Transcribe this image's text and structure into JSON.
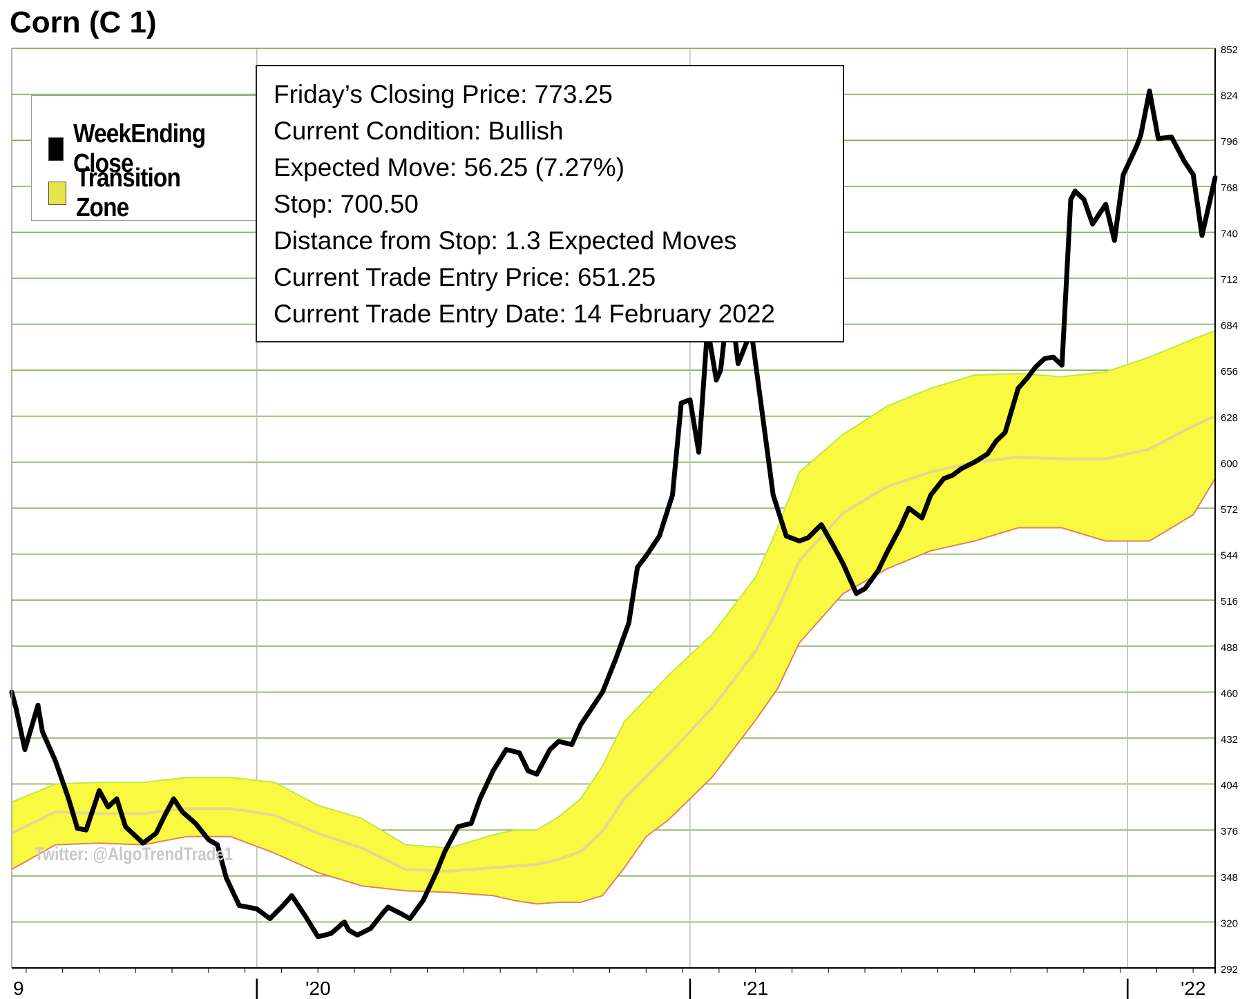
{
  "chart_data": {
    "type": "line",
    "title": "Corn (C 1)",
    "y_axis": {
      "ylim": [
        292,
        852
      ],
      "position": "right",
      "tick_labels": [
        "852",
        "824",
        "796",
        "768",
        "740",
        "712",
        "684",
        "656",
        "628",
        "600",
        "572",
        "544",
        "516",
        "488",
        "460",
        "432",
        "404",
        "376",
        "348",
        "320",
        "292"
      ]
    },
    "x_axis": {
      "xlim": [
        2019.3,
        2022.05
      ],
      "tick_labels": [
        {
          "x": 2019.3,
          "label": "9"
        },
        {
          "x": 2019.86,
          "label": "|"
        },
        {
          "x": 2020.0,
          "label": "'20"
        },
        {
          "x": 2020.85,
          "label": "|"
        },
        {
          "x": 2021.0,
          "label": "'21"
        },
        {
          "x": 2021.85,
          "label": "|"
        },
        {
          "x": 2022.0,
          "label": "'22"
        }
      ],
      "gridlines": [
        2019.86,
        2020.85,
        2021.85
      ]
    },
    "grid": true,
    "legend": {
      "placement": "top-left",
      "entries": [
        {
          "label": "WeekEnding Close",
          "color": "#000000"
        },
        {
          "label": "Transition Zone",
          "color": "#e6e64a"
        }
      ]
    },
    "series": [
      {
        "name": "WeekEnding Close",
        "color": "#000000",
        "x": [
          2019.3,
          2019.31,
          2019.33,
          2019.36,
          2019.37,
          2019.4,
          2019.43,
          2019.44,
          2019.45,
          2019.47,
          2019.5,
          2019.52,
          2019.54,
          2019.56,
          2019.6,
          2019.63,
          2019.65,
          2019.67,
          2019.69,
          2019.72,
          2019.75,
          2019.77,
          2019.79,
          2019.82,
          2019.86,
          2019.89,
          2019.92,
          2019.94,
          2019.97,
          2020.0,
          2020.03,
          2020.06,
          2020.07,
          2020.09,
          2020.12,
          2020.15,
          2020.16,
          2020.19,
          2020.21,
          2020.24,
          2020.27,
          2020.29,
          2020.32,
          2020.35,
          2020.37,
          2020.4,
          2020.43,
          2020.46,
          2020.48,
          2020.5,
          2020.53,
          2020.55,
          2020.58,
          2020.6,
          2020.63,
          2020.65,
          2020.68,
          2020.71,
          2020.73,
          2020.75,
          2020.78,
          2020.81,
          2020.83,
          2020.85,
          2020.87,
          2020.89,
          2020.91,
          2020.92,
          2020.94,
          2020.96,
          2020.99,
          2021.01,
          2021.04,
          2021.07,
          2021.1,
          2021.12,
          2021.15,
          2021.18,
          2021.2,
          2021.23,
          2021.25,
          2021.28,
          2021.3,
          2021.33,
          2021.35,
          2021.38,
          2021.4,
          2021.43,
          2021.45,
          2021.47,
          2021.5,
          2021.53,
          2021.55,
          2021.57,
          2021.6,
          2021.62,
          2021.64,
          2021.66,
          2021.68,
          2021.7,
          2021.72,
          2021.73,
          2021.75,
          2021.77,
          2021.8,
          2021.82,
          2021.84,
          2021.87,
          2021.88,
          2021.9,
          2021.92,
          2021.95,
          2021.98,
          2022.0,
          2022.02,
          2022.05
        ],
        "y": [
          460,
          450,
          425,
          452,
          436,
          418,
          395,
          386,
          377,
          376,
          400,
          390,
          395,
          378,
          368,
          374,
          385,
          395,
          387,
          380,
          370,
          367,
          347,
          330,
          328,
          322,
          330,
          336,
          324,
          311,
          313,
          320,
          315,
          312,
          316,
          326,
          329,
          325,
          322,
          333,
          350,
          363,
          378,
          380,
          395,
          412,
          425,
          423,
          412,
          410,
          425,
          430,
          428,
          440,
          452,
          460,
          480,
          502,
          536,
          543,
          555,
          580,
          636,
          638,
          606,
          682,
          650,
          656,
          704,
          660,
          680,
          640,
          580,
          555,
          552,
          554,
          562,
          548,
          538,
          520,
          523,
          534,
          545,
          560,
          572,
          566,
          580,
          590,
          592,
          596,
          600,
          605,
          613,
          618,
          645,
          651,
          658,
          663,
          664,
          659,
          760,
          765,
          760,
          745,
          757,
          735,
          775,
          792,
          799,
          826,
          797,
          798,
          783,
          775,
          738,
          773.25
        ]
      },
      {
        "name": "Transition Zone upper",
        "color": "#c0e840",
        "x": [
          2019.3,
          2019.4,
          2019.5,
          2019.6,
          2019.7,
          2019.8,
          2019.9,
          2020.0,
          2020.1,
          2020.2,
          2020.3,
          2020.4,
          2020.45,
          2020.5,
          2020.55,
          2020.6,
          2020.65,
          2020.7,
          2020.8,
          2020.9,
          2021.0,
          2021.05,
          2021.1,
          2021.2,
          2021.3,
          2021.4,
          2021.5,
          2021.6,
          2021.7,
          2021.8,
          2021.9,
          2022.0,
          2022.05
        ],
        "y": [
          393,
          404,
          405,
          405,
          408,
          408,
          405,
          391,
          383,
          367,
          365,
          373,
          376,
          376,
          384,
          395,
          415,
          442,
          470,
          495,
          530,
          560,
          594,
          617,
          634,
          645,
          653,
          654,
          652,
          655,
          664,
          675,
          680
        ]
      },
      {
        "name": "Transition Zone lower",
        "color": "#e08060",
        "x": [
          2019.3,
          2019.4,
          2019.5,
          2019.6,
          2019.7,
          2019.8,
          2019.9,
          2020.0,
          2020.1,
          2020.2,
          2020.3,
          2020.4,
          2020.45,
          2020.5,
          2020.55,
          2020.6,
          2020.65,
          2020.7,
          2020.75,
          2020.8,
          2020.9,
          2021.0,
          2021.05,
          2021.1,
          2021.2,
          2021.3,
          2021.4,
          2021.5,
          2021.6,
          2021.7,
          2021.8,
          2021.9,
          2022.0,
          2022.05
        ],
        "y": [
          352,
          367,
          368,
          367,
          372,
          372,
          362,
          350,
          342,
          339,
          338,
          336,
          333,
          331,
          332,
          332,
          336,
          353,
          372,
          382,
          408,
          443,
          462,
          490,
          520,
          535,
          546,
          552,
          560,
          560,
          552,
          552,
          568,
          590
        ]
      },
      {
        "name": "Transition Zone mid",
        "color": "#e3d98c",
        "x": [
          2019.3,
          2019.4,
          2019.5,
          2019.6,
          2019.7,
          2019.8,
          2019.9,
          2020.0,
          2020.1,
          2020.2,
          2020.3,
          2020.4,
          2020.45,
          2020.5,
          2020.55,
          2020.6,
          2020.65,
          2020.7,
          2020.8,
          2020.9,
          2021.0,
          2021.05,
          2021.1,
          2021.2,
          2021.3,
          2021.4,
          2021.5,
          2021.6,
          2021.7,
          2021.8,
          2021.9,
          2022.0,
          2022.05
        ],
        "y": [
          374,
          387,
          386,
          386,
          389,
          389,
          385,
          374,
          365,
          352,
          351,
          353,
          354,
          355,
          358,
          363,
          375,
          395,
          422,
          450,
          485,
          510,
          540,
          569,
          585,
          594,
          600,
          603,
          602,
          602,
          608,
          622,
          628
        ]
      }
    ],
    "info_box": [
      "Friday’s Closing Price: 773.25",
      "Current Condition: Bullish",
      "Expected Move: 56.25 (7.27%)",
      "Stop: 700.50",
      "Distance from Stop: 1.3 Expected Moves",
      "Current Trade Entry Price: 651.25",
      "Current Trade Entry Date: 14 February 2022"
    ],
    "watermark": "Twitter: @AlgoTrendTrade1"
  },
  "colors": {
    "grid": "#7fb04a",
    "zone_fill": "#f9f941",
    "axis": "#000000"
  }
}
